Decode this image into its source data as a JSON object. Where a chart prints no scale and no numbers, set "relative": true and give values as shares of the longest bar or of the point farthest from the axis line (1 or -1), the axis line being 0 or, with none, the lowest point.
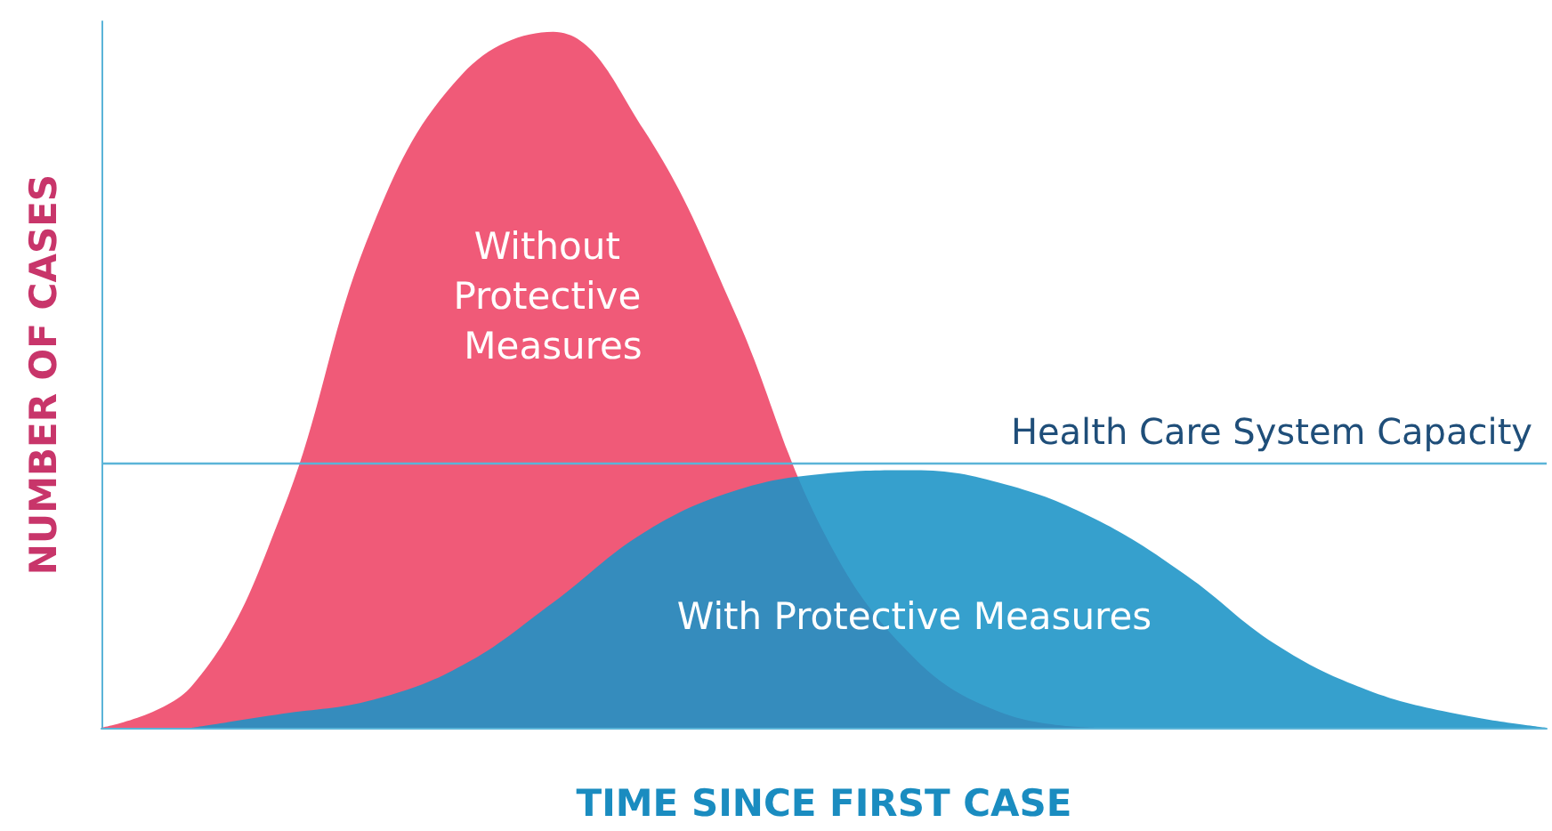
{
  "chart_data": {
    "type": "area",
    "relative": true,
    "xlabel": "TIME SINCE FIRST CASE",
    "ylabel": "NUMBER OF CASES",
    "categories": [
      null,
      null,
      null,
      null,
      null,
      null,
      null,
      null,
      null,
      null,
      null,
      null,
      null,
      null,
      null,
      null,
      null
    ],
    "series": [
      {
        "name": "Without Protective Measures",
        "color": "#f05a78",
        "values": [
          0,
          0.06,
          0.31,
          0.72,
          0.94,
          1,
          0.86,
          0.6,
          0.28,
          0.1,
          0.02,
          0,
          null,
          null,
          null,
          null,
          null
        ]
      },
      {
        "name": "With Protective Measures",
        "color": "#1a93c6",
        "values": [
          null,
          0,
          0.02,
          0.04,
          0.09,
          0.18,
          0.28,
          0.34,
          0.365,
          0.37,
          0.35,
          0.3,
          0.22,
          0.12,
          0.055,
          0.02,
          0
        ]
      }
    ],
    "ref_lines": [
      {
        "axis": "y",
        "value": 0.38,
        "label": "Health Care System Capacity",
        "color": "#5bb4d8"
      }
    ],
    "legend": false,
    "grid": false,
    "marker": "none"
  }
}
